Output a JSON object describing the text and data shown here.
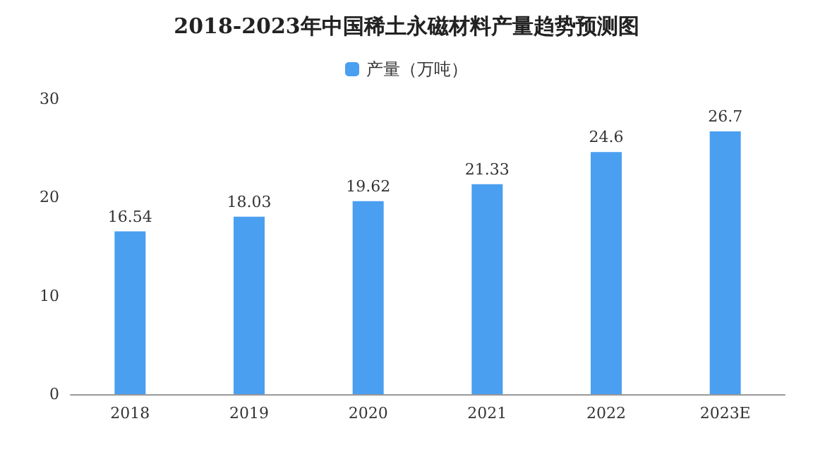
{
  "chart_data": {
    "type": "bar",
    "title": "2018-2023年中国稀土永磁材料产量趋势预测图",
    "categories": [
      "2018",
      "2019",
      "2020",
      "2021",
      "2022",
      "2023E"
    ],
    "series": [
      {
        "name": "产量（万吨）",
        "color": "#4a9ff0",
        "values": [
          16.54,
          18.03,
          19.62,
          21.33,
          24.6,
          26.7
        ]
      }
    ],
    "ylim": [
      0,
      30
    ],
    "yticks": [
      0,
      10,
      20,
      30
    ],
    "grid": false,
    "legend": "top",
    "data_labels": true
  }
}
